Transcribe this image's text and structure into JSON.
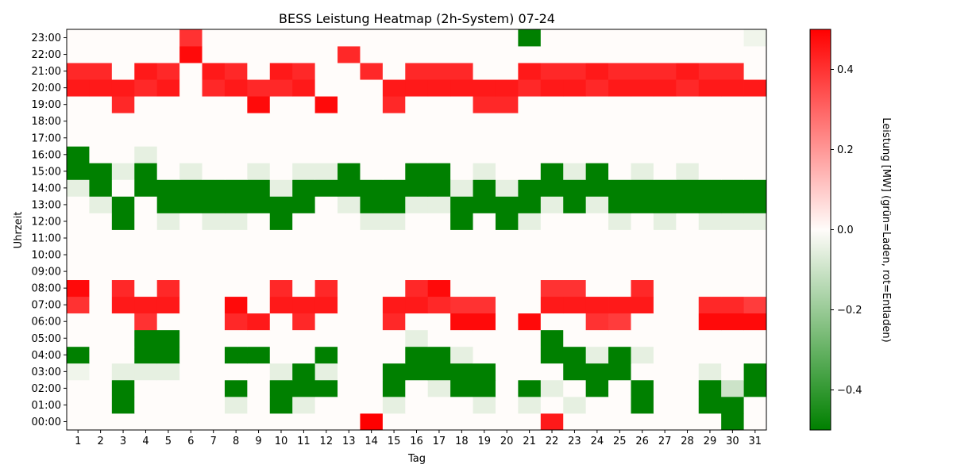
{
  "chart_data": {
    "type": "heatmap",
    "title": "BESS Leistung Heatmap (2h-System) 07-24",
    "xlabel": "Tag",
    "ylabel": "Uhrzeit",
    "colorbar_label": "Leistung [MW] (grün=Laden, rot=Entladen)",
    "colorbar_range": [
      -0.5,
      0.5
    ],
    "colorbar_ticks": [
      -0.4,
      -0.2,
      0.0,
      0.2,
      0.4
    ],
    "colorbar_tick_labels": [
      "−0.4",
      "−0.2",
      "0.0",
      "0.2",
      "0.4"
    ],
    "colors": {
      "negative": "#008000",
      "zero": "#fffcfa",
      "positive": "#ff0000"
    },
    "x": [
      "1",
      "2",
      "3",
      "4",
      "5",
      "6",
      "7",
      "8",
      "9",
      "10",
      "11",
      "12",
      "13",
      "14",
      "15",
      "16",
      "17",
      "18",
      "19",
      "20",
      "21",
      "22",
      "23",
      "24",
      "25",
      "26",
      "27",
      "28",
      "29",
      "30",
      "31"
    ],
    "y": [
      "00:00",
      "01:00",
      "02:00",
      "03:00",
      "04:00",
      "05:00",
      "06:00",
      "07:00",
      "08:00",
      "09:00",
      "10:00",
      "11:00",
      "12:00",
      "13:00",
      "14:00",
      "15:00",
      "16:00",
      "17:00",
      "18:00",
      "19:00",
      "20:00",
      "21:00",
      "22:00",
      "23:00"
    ],
    "values": [
      [
        0,
        0,
        0,
        0,
        0,
        0,
        0,
        0,
        0,
        0,
        0,
        0,
        0,
        0.5,
        0,
        0,
        0,
        0,
        0,
        0,
        0,
        0.45,
        0,
        0,
        0,
        0,
        0,
        0,
        0,
        -0.5,
        0
      ],
      [
        0,
        0,
        -0.5,
        0,
        0,
        0,
        0,
        -0.05,
        0,
        -0.5,
        -0.05,
        0,
        0,
        0,
        -0.05,
        0,
        0,
        0,
        -0.05,
        0,
        -0.05,
        0,
        -0.05,
        0,
        0,
        -0.5,
        0,
        0,
        -0.5,
        -0.5,
        0
      ],
      [
        0,
        0,
        -0.5,
        0,
        0,
        0,
        0,
        -0.5,
        0,
        -0.5,
        -0.5,
        -0.5,
        0,
        0,
        -0.5,
        0,
        -0.05,
        -0.5,
        -0.5,
        0,
        -0.5,
        -0.05,
        0,
        -0.5,
        0,
        -0.5,
        0,
        0,
        -0.5,
        -0.1,
        -0.5
      ],
      [
        -0.03,
        0,
        -0.05,
        -0.05,
        -0.05,
        0,
        0,
        0,
        0,
        -0.05,
        -0.5,
        -0.05,
        0,
        0,
        -0.5,
        -0.5,
        -0.5,
        -0.5,
        -0.5,
        0,
        0,
        0,
        -0.5,
        -0.5,
        -0.5,
        0,
        0,
        0,
        -0.05,
        0,
        -0.5
      ],
      [
        -0.5,
        0,
        0,
        -0.5,
        -0.5,
        0,
        0,
        -0.5,
        -0.5,
        0,
        0,
        -0.5,
        0,
        0,
        0,
        -0.5,
        -0.5,
        -0.05,
        0,
        0,
        0,
        -0.5,
        -0.5,
        -0.05,
        -0.5,
        -0.05,
        0,
        0,
        0,
        0,
        0
      ],
      [
        0,
        0,
        0,
        -0.5,
        -0.5,
        0,
        0,
        0,
        0,
        0,
        0,
        0,
        0,
        0,
        0,
        -0.05,
        0,
        0,
        0,
        0,
        0,
        -0.5,
        0,
        0,
        0,
        0,
        0,
        0,
        0,
        0,
        0
      ],
      [
        0,
        0,
        0,
        0.4,
        0,
        0,
        0,
        0.42,
        0.45,
        0,
        0.42,
        0,
        0,
        0,
        0.42,
        0,
        0,
        0.48,
        0.48,
        0,
        0.48,
        0,
        0,
        0.4,
        0.38,
        0,
        0,
        0,
        0.48,
        0.48,
        0.48
      ],
      [
        0.4,
        0,
        0.45,
        0.45,
        0.45,
        0,
        0,
        0.48,
        0,
        0.45,
        0.45,
        0.45,
        0,
        0,
        0.45,
        0.45,
        0.42,
        0.4,
        0.4,
        0,
        0,
        0.45,
        0.45,
        0.45,
        0.45,
        0.45,
        0,
        0,
        0.42,
        0.42,
        0.38
      ],
      [
        0.48,
        0,
        0.42,
        0,
        0.42,
        0,
        0,
        0,
        0,
        0.42,
        0,
        0.42,
        0,
        0,
        0,
        0.42,
        0.48,
        0,
        0,
        0,
        0,
        0.4,
        0.4,
        0,
        0,
        0.42,
        0,
        0,
        0,
        0,
        0
      ],
      [
        0,
        0,
        0,
        0,
        0,
        0,
        0,
        0,
        0,
        0,
        0,
        0,
        0,
        0,
        0,
        0,
        0,
        0,
        0,
        0,
        0,
        0,
        0,
        0,
        0,
        0,
        0,
        0,
        0,
        0,
        0
      ],
      [
        0,
        0,
        0,
        0,
        0,
        0,
        0,
        0,
        0,
        0,
        0,
        0,
        0,
        0,
        0,
        0,
        0,
        0,
        0,
        0,
        0,
        0,
        0,
        0,
        0,
        0,
        0,
        0,
        0,
        0,
        0
      ],
      [
        0,
        0,
        0,
        0,
        0,
        0,
        0,
        0,
        0,
        0,
        0,
        0,
        0,
        0,
        0,
        0,
        0,
        0,
        0,
        0,
        0,
        0,
        0,
        0,
        0,
        0,
        0,
        0,
        0,
        0,
        0
      ],
      [
        0,
        0,
        -0.5,
        0,
        -0.05,
        0,
        -0.05,
        -0.05,
        0,
        -0.5,
        0,
        0,
        0,
        -0.05,
        -0.05,
        0,
        0,
        -0.5,
        0,
        -0.5,
        -0.05,
        0,
        0,
        0,
        -0.05,
        0,
        -0.05,
        0,
        -0.05,
        -0.05,
        -0.05
      ],
      [
        0,
        -0.05,
        -0.5,
        0,
        -0.5,
        -0.5,
        -0.5,
        -0.5,
        -0.5,
        -0.5,
        -0.5,
        0,
        -0.05,
        -0.5,
        -0.5,
        -0.05,
        -0.05,
        -0.5,
        -0.5,
        -0.5,
        -0.5,
        -0.05,
        -0.5,
        -0.05,
        -0.5,
        -0.5,
        -0.5,
        -0.5,
        -0.5,
        -0.5,
        -0.5
      ],
      [
        -0.05,
        -0.5,
        0,
        -0.5,
        -0.5,
        -0.5,
        -0.5,
        -0.5,
        -0.5,
        -0.05,
        -0.5,
        -0.5,
        -0.5,
        -0.5,
        -0.5,
        -0.5,
        -0.5,
        -0.05,
        -0.5,
        -0.05,
        -0.5,
        -0.5,
        -0.5,
        -0.5,
        -0.5,
        -0.5,
        -0.5,
        -0.5,
        -0.5,
        -0.5,
        -0.5
      ],
      [
        -0.5,
        -0.5,
        -0.05,
        -0.5,
        0,
        -0.05,
        0,
        0,
        -0.05,
        0,
        -0.05,
        -0.05,
        -0.5,
        0,
        0,
        -0.5,
        -0.5,
        0,
        -0.05,
        0,
        0,
        -0.5,
        -0.05,
        -0.5,
        0,
        -0.05,
        0,
        -0.05,
        0,
        0,
        0
      ],
      [
        -0.5,
        0,
        0,
        -0.05,
        0,
        0,
        0,
        0,
        0,
        0,
        0,
        0,
        0,
        0,
        0,
        0,
        0,
        0,
        0,
        0,
        0,
        0,
        0,
        0,
        0,
        0,
        0,
        0,
        0,
        0,
        0
      ],
      [
        0,
        0,
        0,
        0,
        0,
        0,
        0,
        0,
        0,
        0,
        0,
        0,
        0,
        0,
        0,
        0,
        0,
        0,
        0,
        0,
        0,
        0,
        0,
        0,
        0,
        0,
        0,
        0,
        0,
        0,
        0
      ],
      [
        0,
        0,
        0,
        0,
        0,
        0,
        0,
        0,
        0,
        0,
        0,
        0,
        0,
        0,
        0,
        0,
        0,
        0,
        0,
        0,
        0,
        0,
        0,
        0,
        0,
        0,
        0,
        0,
        0,
        0,
        0
      ],
      [
        0,
        0,
        0.42,
        0,
        0,
        0,
        0,
        0,
        0.48,
        0,
        0,
        0.48,
        0,
        0,
        0.42,
        0,
        0,
        0,
        0.42,
        0.42,
        0,
        0,
        0,
        0,
        0,
        0,
        0,
        0,
        0,
        0,
        0
      ],
      [
        0.45,
        0.45,
        0.45,
        0.42,
        0.45,
        0,
        0.42,
        0.45,
        0.42,
        0.42,
        0.45,
        0,
        0,
        0,
        0.45,
        0.45,
        0.45,
        0.45,
        0.45,
        0.45,
        0.42,
        0.45,
        0.45,
        0.42,
        0.45,
        0.45,
        0.45,
        0.42,
        0.45,
        0.45,
        0.45
      ],
      [
        0.42,
        0.42,
        0,
        0.45,
        0.42,
        0,
        0.45,
        0.42,
        0,
        0.45,
        0.42,
        0,
        0,
        0.42,
        0,
        0.42,
        0.42,
        0.42,
        0,
        0,
        0.45,
        0.42,
        0.42,
        0.45,
        0.42,
        0.42,
        0.42,
        0.45,
        0.42,
        0.42,
        0
      ],
      [
        0,
        0,
        0,
        0,
        0,
        0.48,
        0,
        0,
        0,
        0,
        0,
        0,
        0.42,
        0,
        0,
        0,
        0,
        0,
        0,
        0,
        0,
        0,
        0,
        0,
        0,
        0,
        0,
        0,
        0,
        0,
        0
      ],
      [
        0,
        0,
        0,
        0,
        0,
        0.4,
        0,
        0,
        0,
        0,
        0,
        0,
        0,
        0,
        0,
        0,
        0,
        0,
        0,
        0,
        -0.5,
        0,
        0,
        0,
        0,
        0,
        0,
        0,
        0,
        0,
        -0.03
      ]
    ]
  }
}
